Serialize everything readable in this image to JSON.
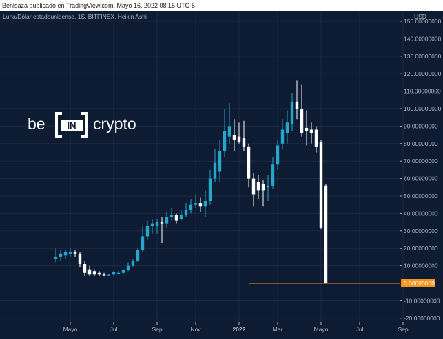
{
  "header": {
    "published_text": "Benlsaza publicado en TradingView.com, Mayo 16, 2022 08:15 UTC-5"
  },
  "chart_data": {
    "type": "candlestick",
    "symbol_info": "Luna/Dólar estadounidense, 1S, BITFINEX, Heikin Ashi",
    "currency": "USD",
    "brand": "beincrypto",
    "colors": {
      "background": "#0d1b33",
      "up": "#26a6c9",
      "down": "#ffffff",
      "last_price": "#f7931a",
      "grid": "#1c2a44",
      "text": "#b2b5be"
    },
    "ylim": [
      -20,
      155
    ],
    "y_ticks": [
      {
        "value": 150,
        "label": "150.00000000"
      },
      {
        "value": 140,
        "label": "140.00000000"
      },
      {
        "value": 130,
        "label": "130.00000000"
      },
      {
        "value": 120,
        "label": "120.00000000"
      },
      {
        "value": 110,
        "label": "110.00000000"
      },
      {
        "value": 100,
        "label": "100.00000000"
      },
      {
        "value": 90,
        "label": "90.00000000"
      },
      {
        "value": 80,
        "label": "80.00000000"
      },
      {
        "value": 70,
        "label": "70.00000000"
      },
      {
        "value": 60,
        "label": "60.00000000"
      },
      {
        "value": 50,
        "label": "50.00000000"
      },
      {
        "value": 40,
        "label": "40.00000000"
      },
      {
        "value": 30,
        "label": "30.00000000"
      },
      {
        "value": 20,
        "label": "20.00000000"
      },
      {
        "value": 10,
        "label": "10.00000000"
      },
      {
        "value": -10,
        "label": "-10.00000000"
      },
      {
        "value": -20,
        "label": "-20.00000000"
      }
    ],
    "x_ticks": [
      {
        "label": "Mayo",
        "week": 3,
        "bold": false
      },
      {
        "label": "Jul",
        "week": 12,
        "bold": false
      },
      {
        "label": "Sep",
        "week": 21,
        "bold": false
      },
      {
        "label": "Nov",
        "week": 29,
        "bold": false
      },
      {
        "label": "2022",
        "week": 38,
        "bold": true
      },
      {
        "label": "Mar",
        "week": 46,
        "bold": false
      },
      {
        "label": "Mayo",
        "week": 55,
        "bold": false
      },
      {
        "label": "Jul",
        "week": 63,
        "bold": false
      },
      {
        "label": "Sep",
        "week": 72,
        "bold": false
      }
    ],
    "last_price": {
      "value": 0,
      "label": "0.00000000",
      "line_start_week": 40
    },
    "candles": [
      {
        "o": 14,
        "h": 20,
        "l": 12,
        "c": 15
      },
      {
        "o": 15,
        "h": 19,
        "l": 13,
        "c": 17
      },
      {
        "o": 16,
        "h": 19,
        "l": 14,
        "c": 18
      },
      {
        "o": 17,
        "h": 20,
        "l": 15,
        "c": 18
      },
      {
        "o": 18,
        "h": 19,
        "l": 15,
        "c": 17
      },
      {
        "o": 17,
        "h": 18,
        "l": 9,
        "c": 11
      },
      {
        "o": 11,
        "h": 13,
        "l": 4,
        "c": 6
      },
      {
        "o": 8,
        "h": 10,
        "l": 4,
        "c": 5
      },
      {
        "o": 7,
        "h": 8,
        "l": 4,
        "c": 5
      },
      {
        "o": 6,
        "h": 7,
        "l": 4,
        "c": 5
      },
      {
        "o": 5,
        "h": 6,
        "l": 4,
        "c": 4.5
      },
      {
        "o": 4.5,
        "h": 5.5,
        "l": 4,
        "c": 5
      },
      {
        "o": 5,
        "h": 7,
        "l": 4.5,
        "c": 6.5
      },
      {
        "o": 6,
        "h": 7,
        "l": 5,
        "c": 6
      },
      {
        "o": 6,
        "h": 8,
        "l": 5.5,
        "c": 7.5
      },
      {
        "o": 7.5,
        "h": 12,
        "l": 7,
        "c": 10
      },
      {
        "o": 10,
        "h": 14,
        "l": 9,
        "c": 13
      },
      {
        "o": 13,
        "h": 20,
        "l": 12,
        "c": 19
      },
      {
        "o": 19,
        "h": 33,
        "l": 18,
        "c": 27
      },
      {
        "o": 27,
        "h": 36,
        "l": 25,
        "c": 33
      },
      {
        "o": 33,
        "h": 37,
        "l": 28,
        "c": 34
      },
      {
        "o": 33,
        "h": 37,
        "l": 28,
        "c": 35
      },
      {
        "o": 35,
        "h": 38,
        "l": 23,
        "c": 34
      },
      {
        "o": 34,
        "h": 41,
        "l": 32,
        "c": 38
      },
      {
        "o": 38,
        "h": 43,
        "l": 36,
        "c": 39
      },
      {
        "o": 39,
        "h": 40,
        "l": 34,
        "c": 36
      },
      {
        "o": 37,
        "h": 42,
        "l": 36,
        "c": 39
      },
      {
        "o": 39,
        "h": 46,
        "l": 38,
        "c": 42
      },
      {
        "o": 42,
        "h": 48,
        "l": 40,
        "c": 45
      },
      {
        "o": 45,
        "h": 51,
        "l": 43,
        "c": 46
      },
      {
        "o": 46,
        "h": 49,
        "l": 41,
        "c": 44
      },
      {
        "o": 44,
        "h": 53,
        "l": 38,
        "c": 47
      },
      {
        "o": 47,
        "h": 65,
        "l": 45,
        "c": 60
      },
      {
        "o": 60,
        "h": 77,
        "l": 58,
        "c": 69
      },
      {
        "o": 64,
        "h": 82,
        "l": 58,
        "c": 76
      },
      {
        "o": 76,
        "h": 100,
        "l": 72,
        "c": 87
      },
      {
        "o": 84,
        "h": 103,
        "l": 80,
        "c": 90
      },
      {
        "o": 85,
        "h": 94,
        "l": 76,
        "c": 82
      },
      {
        "o": 84,
        "h": 92,
        "l": 80,
        "c": 81
      },
      {
        "o": 83,
        "h": 93,
        "l": 76,
        "c": 78
      },
      {
        "o": 78,
        "h": 80,
        "l": 55,
        "c": 60
      },
      {
        "o": 60,
        "h": 63,
        "l": 44,
        "c": 51
      },
      {
        "o": 58,
        "h": 62,
        "l": 48,
        "c": 53
      },
      {
        "o": 57,
        "h": 59,
        "l": 44,
        "c": 53
      },
      {
        "o": 55,
        "h": 62,
        "l": 47,
        "c": 56
      },
      {
        "o": 56,
        "h": 72,
        "l": 54,
        "c": 68
      },
      {
        "o": 68,
        "h": 82,
        "l": 65,
        "c": 79
      },
      {
        "o": 80,
        "h": 94,
        "l": 77,
        "c": 88
      },
      {
        "o": 86,
        "h": 99,
        "l": 80,
        "c": 92
      },
      {
        "o": 91,
        "h": 109,
        "l": 87,
        "c": 104
      },
      {
        "o": 104,
        "h": 116,
        "l": 94,
        "c": 100
      },
      {
        "o": 100,
        "h": 114,
        "l": 84,
        "c": 86
      },
      {
        "o": 89,
        "h": 99,
        "l": 79,
        "c": 87
      },
      {
        "o": 88,
        "h": 92,
        "l": 80,
        "c": 86
      },
      {
        "o": 88,
        "h": 90,
        "l": 75,
        "c": 78
      },
      {
        "o": 81,
        "h": 82,
        "l": 31,
        "c": 32
      },
      {
        "o": 56,
        "h": 57,
        "l": 0,
        "c": 0
      }
    ]
  }
}
